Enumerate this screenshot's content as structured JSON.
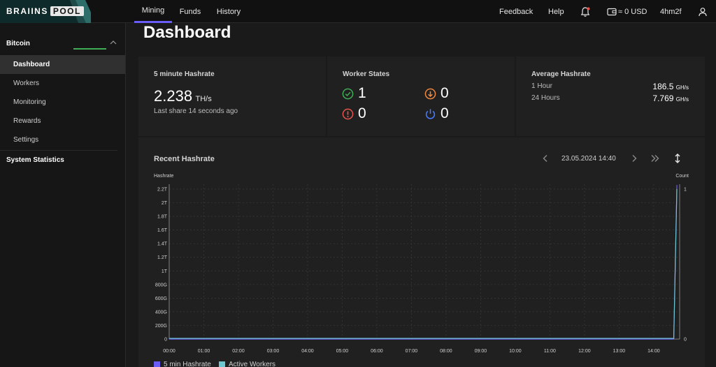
{
  "app": {
    "logo_brains": "BRAIINS",
    "logo_pool": "POOL"
  },
  "topnav": {
    "tabs": [
      {
        "label": "Mining",
        "active": true
      },
      {
        "label": "Funds",
        "active": false
      },
      {
        "label": "History",
        "active": false
      }
    ],
    "feedback": "Feedback",
    "help": "Help",
    "balance": "≈ 0 USD",
    "username": "4hm2f",
    "icons": {
      "bell": "bell-icon",
      "wallet": "wallet-icon",
      "user": "user-icon"
    }
  },
  "sidebar": {
    "group": "Bitcoin",
    "items": [
      {
        "label": "Dashboard",
        "active": true
      },
      {
        "label": "Workers",
        "active": false
      },
      {
        "label": "Monitoring",
        "active": false
      },
      {
        "label": "Rewards",
        "active": false
      },
      {
        "label": "Settings",
        "active": false
      }
    ],
    "system_statistics": "System Statistics"
  },
  "page": {
    "title": "Dashboard"
  },
  "hashrate_card": {
    "title": "5 minute Hashrate",
    "value": "2.238",
    "unit": "TH/s",
    "last_share": "Last share 14 seconds ago"
  },
  "worker_states": {
    "title": "Worker States",
    "ok": "1",
    "low": "0",
    "error": "0",
    "off": "0"
  },
  "average_hashrate": {
    "title": "Average Hashrate",
    "rows": [
      {
        "label": "1 Hour",
        "value": "186.5",
        "unit": "GH/s"
      },
      {
        "label": "24 Hours",
        "value": "7.769",
        "unit": "GH/s"
      }
    ]
  },
  "recent": {
    "title": "Recent Hashrate",
    "date": "23.05.2024 14:40"
  },
  "colors": {
    "accent": "#6a5cf6",
    "ok": "#3fae57",
    "warn": "#f0883e",
    "error": "#e5534b",
    "off": "#4a7cff",
    "active_workers": "#6ec6d0"
  },
  "chart_data": {
    "type": "line",
    "ylabel": "Hashrate",
    "y2label": "Count",
    "y_ticks": [
      "0",
      "200G",
      "400G",
      "600G",
      "800G",
      "1T",
      "1.2T",
      "1.4T",
      "1.6T",
      "1.8T",
      "2T",
      "2.2T"
    ],
    "y2_ticks": [
      "0",
      "1"
    ],
    "x_ticks": [
      "00:00",
      "01:00",
      "02:00",
      "03:00",
      "04:00",
      "05:00",
      "06:00",
      "07:00",
      "08:00",
      "09:00",
      "10:00",
      "11:00",
      "12:00",
      "13:00",
      "14:00"
    ],
    "ylim": [
      0,
      2250
    ],
    "y2lim": [
      0,
      1
    ],
    "series": [
      {
        "name": "5 min Hashrate",
        "color": "#6a5cf6",
        "axis": "left",
        "points": [
          [
            0,
            0
          ],
          [
            14.4,
            0
          ],
          [
            14.58,
            0
          ],
          [
            14.67,
            2238
          ]
        ]
      },
      {
        "name": "Active Workers",
        "color": "#6ec6d0",
        "axis": "right",
        "points": [
          [
            0,
            0
          ],
          [
            14.4,
            0
          ],
          [
            14.58,
            0
          ],
          [
            14.67,
            1
          ]
        ]
      }
    ],
    "grid": true,
    "legend": "bottom-left"
  }
}
